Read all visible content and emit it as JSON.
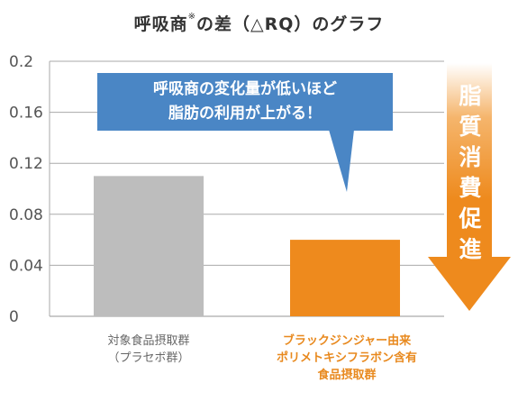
{
  "title": {
    "prefix": "呼吸商",
    "mark": "※",
    "suffix": "の差（△RQ）のグラフ"
  },
  "callout": {
    "line1": "呼吸商の変化量が低いほど",
    "line2": "脂肪の利用が上がる！"
  },
  "arrow_label": [
    "脂",
    "質",
    "消",
    "費",
    "促",
    "進"
  ],
  "categories": [
    {
      "line1": "対象食品摂取群",
      "line2": "（プラセボ群）",
      "line3": ""
    },
    {
      "line1": "ブラックジンジャー由来",
      "line2": "ポリメトキシフラボン含有",
      "line3": "食品摂取群"
    }
  ],
  "colors": {
    "placebo_bar": "#bdbdbd",
    "treatment_bar": "#ee8a1d",
    "callout_bg": "#4a86c5",
    "arrow": "#ee8a1d",
    "grid": "#aaaaaa"
  },
  "chart_data": {
    "type": "bar",
    "title": "呼吸商※の差（△RQ）のグラフ",
    "categories": [
      "対象食品摂取群（プラセボ群）",
      "ブラックジンジャー由来ポリメトキシフラボン含有食品摂取群"
    ],
    "values": [
      0.11,
      0.06
    ],
    "ylim": [
      0,
      0.2
    ],
    "yticks": [
      "0",
      "0.04",
      "0.08",
      "0.12",
      "0.16",
      "0.2"
    ],
    "grid": true,
    "xlabel": "",
    "ylabel": ""
  }
}
